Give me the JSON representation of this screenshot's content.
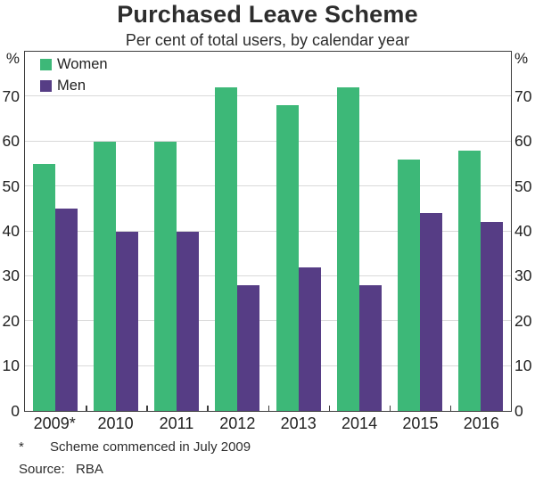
{
  "title": "Purchased Leave Scheme",
  "subtitle": "Per cent of total users, by calendar year",
  "axis": {
    "unit": "%",
    "yticks": [
      0,
      10,
      20,
      30,
      40,
      50,
      60,
      70
    ]
  },
  "colors": {
    "women": "#3db878",
    "men": "#563d85",
    "frame": "#3c3c3c",
    "gridline": "#d9d9d9"
  },
  "chart_data": {
    "type": "bar",
    "title": "Purchased Leave Scheme",
    "subtitle": "Per cent of total users, by calendar year",
    "categories": [
      "2009*",
      "2010",
      "2011",
      "2012",
      "2013",
      "2014",
      "2015",
      "2016"
    ],
    "series": [
      {
        "name": "Women",
        "color": "#3db878",
        "values": [
          55,
          60,
          60,
          72,
          68,
          72,
          56,
          58
        ]
      },
      {
        "name": "Men",
        "color": "#563d85",
        "values": [
          45,
          40,
          40,
          28,
          32,
          28,
          44,
          42
        ]
      }
    ],
    "xlabel": "",
    "ylabel": "%",
    "ylim": [
      0,
      80
    ],
    "grid": true,
    "legend_position": "top-left"
  },
  "footnotes": [
    {
      "marker": "*",
      "text": "Scheme commenced in July 2009"
    },
    {
      "marker": "Source:",
      "text": "RBA"
    }
  ]
}
